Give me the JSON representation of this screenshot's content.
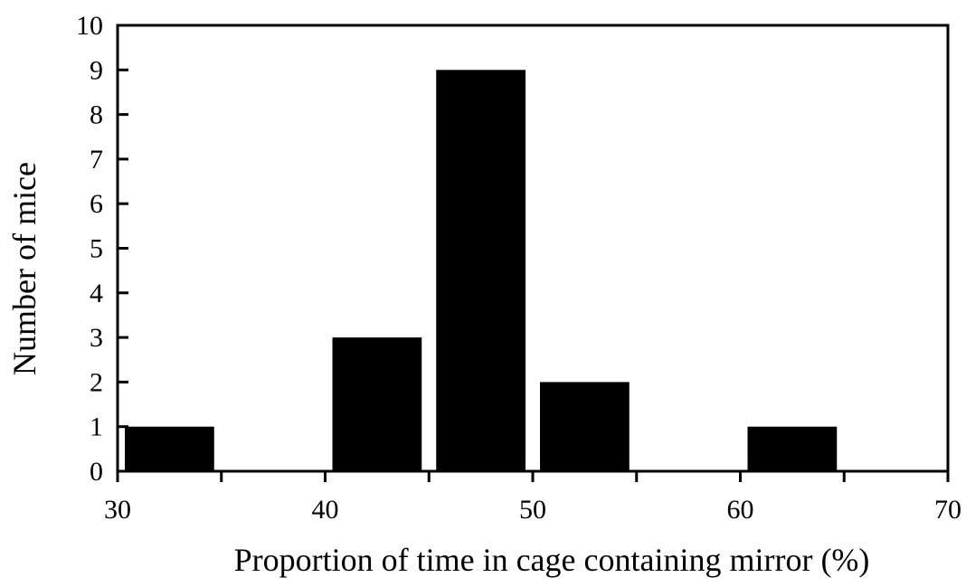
{
  "chart_data": {
    "type": "bar",
    "xlabel": "Proportion of time in cage containing  mirror (%)",
    "ylabel": "Number of mice",
    "xlim": [
      30,
      70
    ],
    "ylim": [
      0,
      10
    ],
    "grid": false,
    "legend": "none",
    "bar_color": "#000000",
    "bins": [
      {
        "start": 30,
        "end": 35,
        "value": 1
      },
      {
        "start": 35,
        "end": 40,
        "value": 0
      },
      {
        "start": 40,
        "end": 45,
        "value": 3
      },
      {
        "start": 45,
        "end": 50,
        "value": 9
      },
      {
        "start": 50,
        "end": 55,
        "value": 2
      },
      {
        "start": 55,
        "end": 60,
        "value": 0
      },
      {
        "start": 60,
        "end": 65,
        "value": 1
      },
      {
        "start": 65,
        "end": 70,
        "value": 0
      }
    ],
    "x_ticks": [
      30,
      40,
      50,
      60,
      70
    ],
    "y_ticks": [
      0,
      1,
      2,
      3,
      4,
      5,
      6,
      7,
      8,
      9,
      10
    ]
  }
}
